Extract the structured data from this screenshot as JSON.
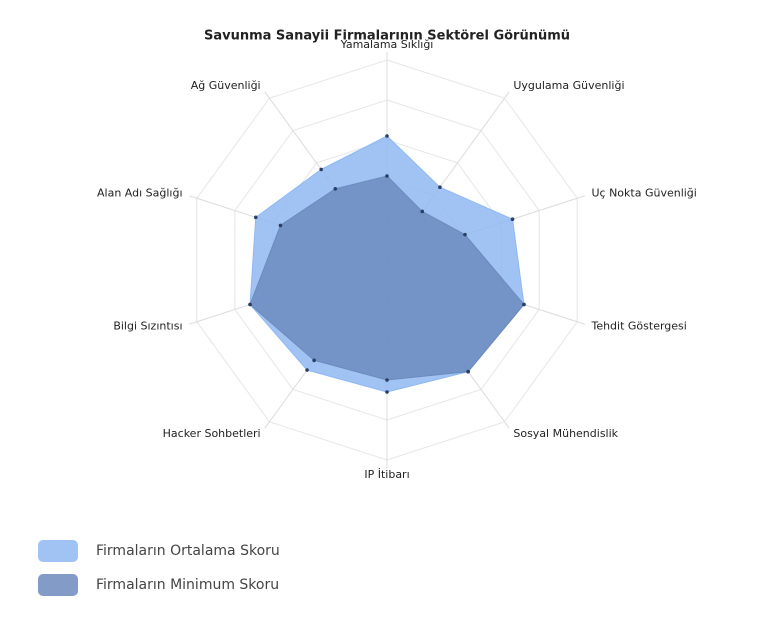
{
  "chart_data": {
    "type": "radar",
    "title": "Savunma Sanayii Firmalarının Sektörel Görünümü",
    "categories": [
      "Yamalama Sıklığı",
      "Uygulama Güvenliği",
      "Uç Nokta Güvenliği",
      "Tehdit Göstergesi",
      "Sosyal Mühendislik",
      "IP İtibarı",
      "Hacker Sohbetleri",
      "Bilgi Sızıntısı",
      "Alan Adı Sağlığı",
      "Ağ Güvenliği"
    ],
    "series": [
      {
        "name": "Firmaların Ortalama Skoru",
        "color": "#8fb8f2",
        "values": [
          62,
          45,
          66,
          72,
          69,
          66,
          68,
          72,
          69,
          56
        ]
      },
      {
        "name": "Firmaların Minimum Skoru",
        "color": "#6c8bbd",
        "values": [
          42,
          30,
          41,
          72,
          69,
          60,
          62,
          72,
          56,
          44
        ]
      }
    ],
    "rlim": [
      0,
      100
    ],
    "grid": true
  }
}
